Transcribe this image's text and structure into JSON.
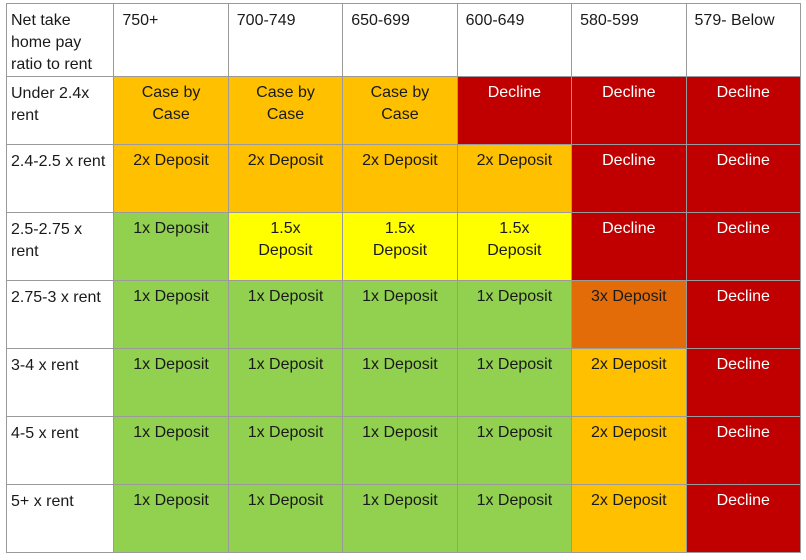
{
  "colors": {
    "green": "#92d050",
    "yellow": "#ffff00",
    "amber": "#ffc000",
    "orange": "#e36c09",
    "red": "#c00000"
  },
  "table": {
    "corner_header": "Net take home pay ratio to rent",
    "score_columns": [
      "750+",
      "700-749",
      "650-699",
      "600-649",
      "580-599",
      "579- Below"
    ],
    "rows": [
      {
        "label": "Under 2.4x rent",
        "cells": [
          {
            "text": "Case by Case",
            "color": "amber"
          },
          {
            "text": "Case by Case",
            "color": "amber"
          },
          {
            "text": "Case by Case",
            "color": "amber"
          },
          {
            "text": "Decline",
            "color": "red"
          },
          {
            "text": "Decline",
            "color": "red"
          },
          {
            "text": "Decline",
            "color": "red"
          }
        ]
      },
      {
        "label": "2.4-2.5 x rent",
        "cells": [
          {
            "text": "2x Deposit",
            "color": "amber"
          },
          {
            "text": "2x Deposit",
            "color": "amber"
          },
          {
            "text": "2x Deposit",
            "color": "amber"
          },
          {
            "text": "2x Deposit",
            "color": "amber"
          },
          {
            "text": "Decline",
            "color": "red"
          },
          {
            "text": "Decline",
            "color": "red"
          }
        ]
      },
      {
        "label": "2.5-2.75 x rent",
        "cells": [
          {
            "text": "1x Deposit",
            "color": "green"
          },
          {
            "text": "1.5x Deposit",
            "color": "yellow"
          },
          {
            "text": "1.5x Deposit",
            "color": "yellow"
          },
          {
            "text": "1.5x Deposit",
            "color": "yellow"
          },
          {
            "text": "Decline",
            "color": "red"
          },
          {
            "text": "Decline",
            "color": "red"
          }
        ]
      },
      {
        "label": "2.75-3 x rent",
        "cells": [
          {
            "text": "1x Deposit",
            "color": "green"
          },
          {
            "text": "1x Deposit",
            "color": "green"
          },
          {
            "text": "1x Deposit",
            "color": "green"
          },
          {
            "text": "1x Deposit",
            "color": "green",
            "wide": true
          },
          {
            "text": "3x Deposit",
            "color": "orange"
          },
          {
            "text": "Decline",
            "color": "red"
          }
        ]
      },
      {
        "label": "3-4 x rent",
        "cells": [
          {
            "text": "1x Deposit",
            "color": "green"
          },
          {
            "text": "1x Deposit",
            "color": "green"
          },
          {
            "text": "1x Deposit",
            "color": "green"
          },
          {
            "text": "1x Deposit",
            "color": "green"
          },
          {
            "text": "2x Deposit",
            "color": "amber"
          },
          {
            "text": "Decline",
            "color": "red"
          }
        ]
      },
      {
        "label": "4-5 x rent",
        "cells": [
          {
            "text": "1x Deposit",
            "color": "green"
          },
          {
            "text": "1x Deposit",
            "color": "green"
          },
          {
            "text": "1x Deposit",
            "color": "green"
          },
          {
            "text": "1x Deposit",
            "color": "green",
            "wide": true
          },
          {
            "text": "2x Deposit",
            "color": "amber"
          },
          {
            "text": "Decline",
            "color": "red"
          }
        ]
      },
      {
        "label": "5+ x rent",
        "cells": [
          {
            "text": "1x Deposit",
            "color": "green",
            "wide": true
          },
          {
            "text": "1x Deposit",
            "color": "green"
          },
          {
            "text": "1x Deposit",
            "color": "green"
          },
          {
            "text": "1x Deposit",
            "color": "green"
          },
          {
            "text": "2x Deposit",
            "color": "amber"
          },
          {
            "text": "Decline",
            "color": "red"
          }
        ]
      }
    ]
  }
}
